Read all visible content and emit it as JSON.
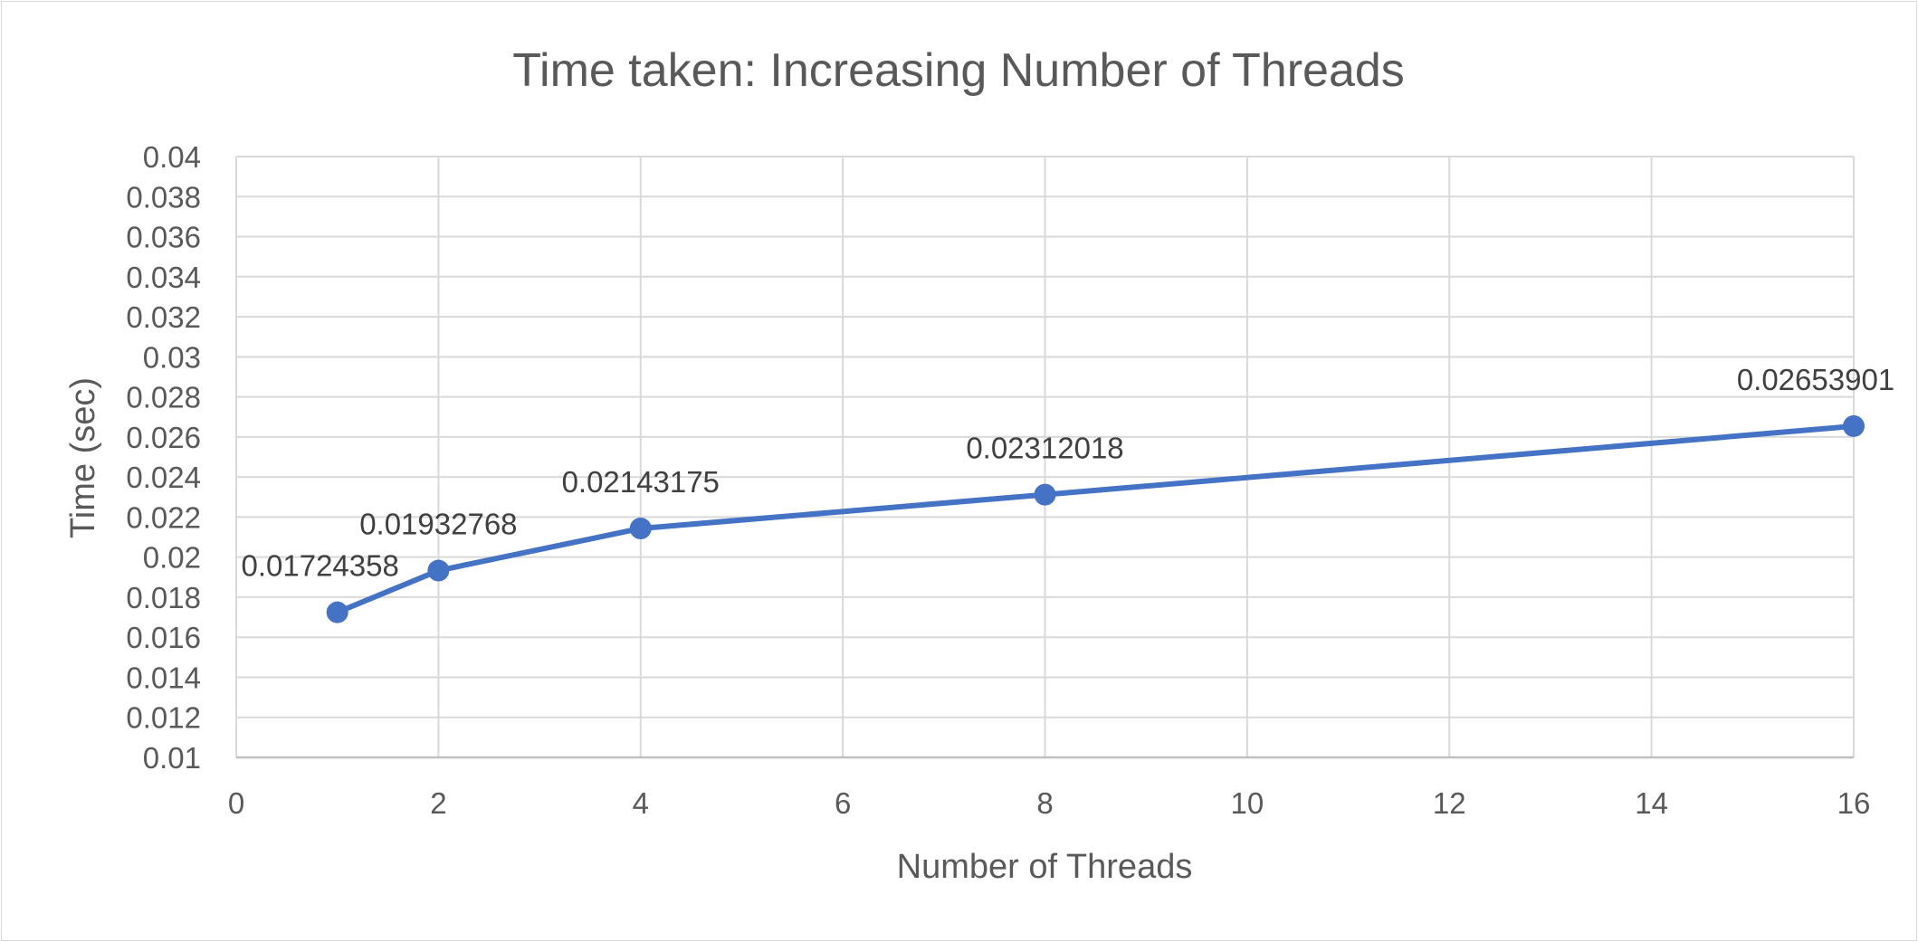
{
  "chart_data": {
    "type": "line",
    "title": "Time taken: Increasing Number of Threads",
    "xlabel": "Number of Threads",
    "ylabel": "Time (sec)",
    "xlim": [
      0,
      16
    ],
    "ylim": [
      0.01,
      0.04
    ],
    "x_ticks": [
      "0",
      "2",
      "4",
      "6",
      "8",
      "10",
      "12",
      "14",
      "16"
    ],
    "y_ticks": [
      "0.01",
      "0.012",
      "0.014",
      "0.016",
      "0.018",
      "0.02",
      "0.022",
      "0.024",
      "0.026",
      "0.028",
      "0.03",
      "0.032",
      "0.034",
      "0.036",
      "0.038",
      "0.04"
    ],
    "grid": true,
    "legend": "none",
    "series": [
      {
        "color": "#4472C4",
        "x": [
          1,
          2,
          4,
          8,
          16
        ],
        "y": [
          0.01724358,
          0.01932768,
          0.02143175,
          0.02312018,
          0.02653901
        ],
        "labels": [
          "0.01724358",
          "0.01932768",
          "0.02143175",
          "0.02312018",
          "0.02653901"
        ]
      }
    ]
  }
}
